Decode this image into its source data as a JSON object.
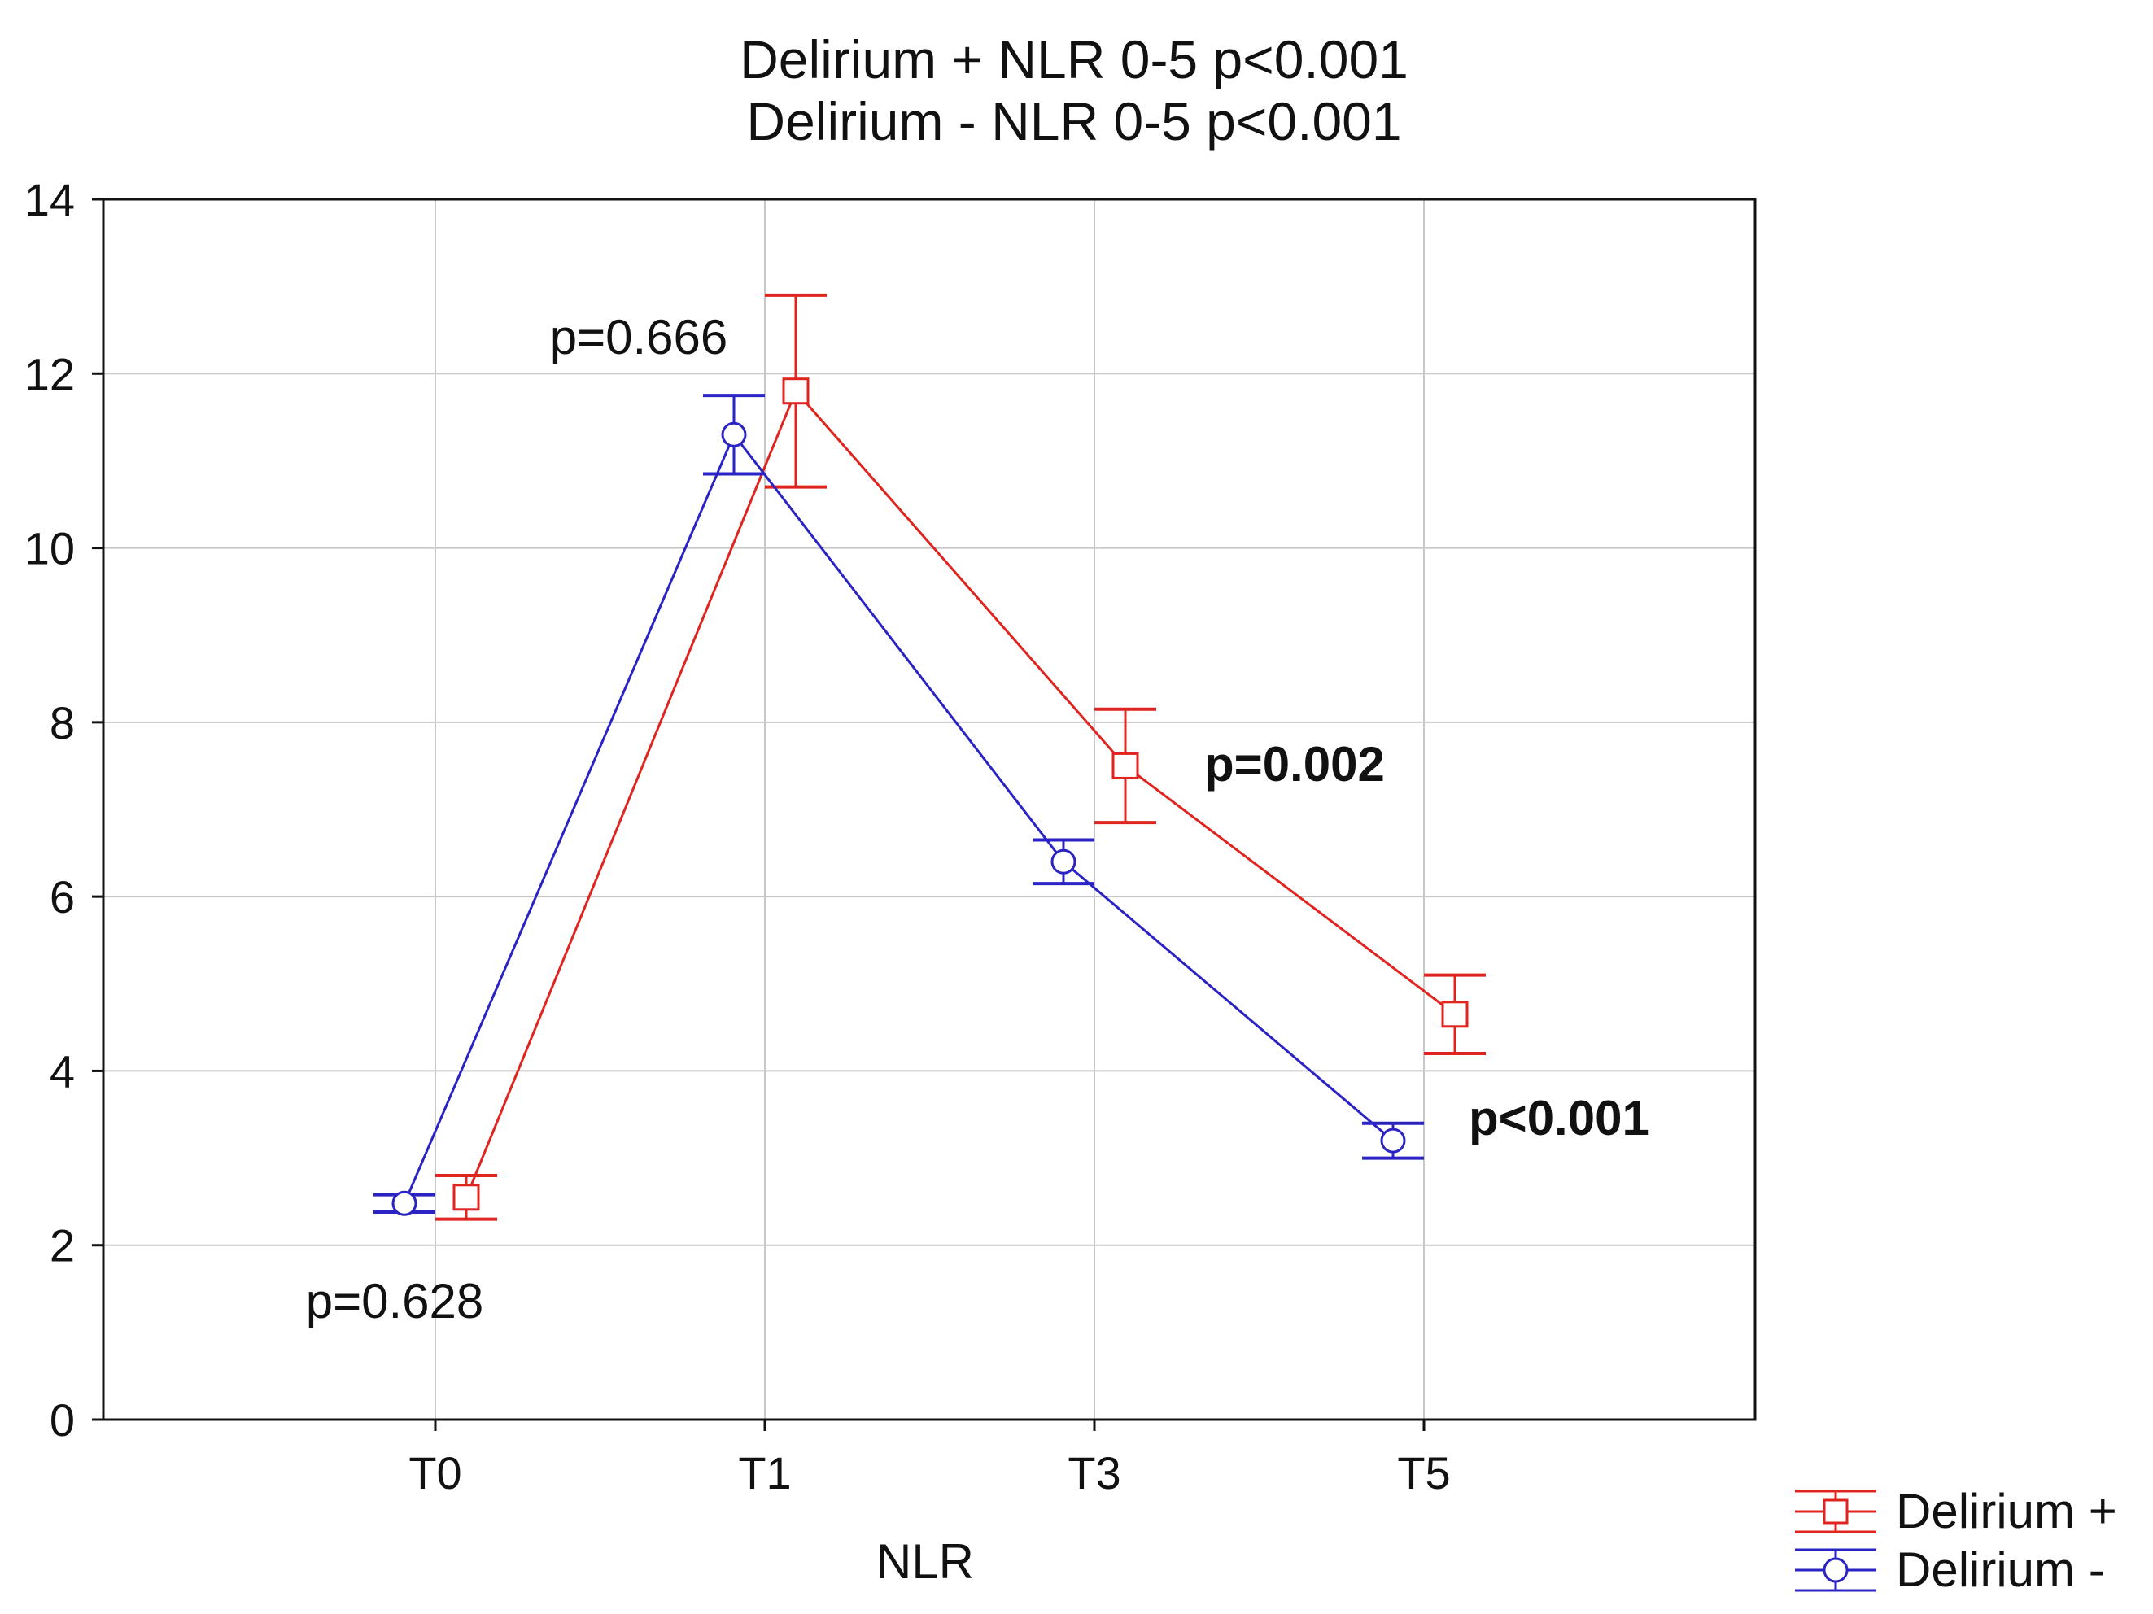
{
  "chart_data": {
    "type": "line",
    "title": [
      "Delirium + NLR 0-5 p<0.001",
      "Delirium - NLR 0-5 p<0.001"
    ],
    "xlabel": "NLR",
    "ylabel": "",
    "categories": [
      "T0",
      "T1",
      "T3",
      "T5"
    ],
    "ylim": [
      0,
      14
    ],
    "yticks": [
      "0",
      "2",
      "4",
      "6",
      "8",
      "10",
      "12",
      "14"
    ],
    "grid": true,
    "series": [
      {
        "name": "Delirium +",
        "color": "#e0241f",
        "marker": "square",
        "values": [
          2.55,
          11.8,
          7.5,
          4.65
        ],
        "err_low": [
          2.3,
          10.7,
          6.85,
          4.2
        ],
        "err_high": [
          2.8,
          12.9,
          8.15,
          5.1
        ]
      },
      {
        "name": "Delirium -",
        "color": "#2b23c4",
        "marker": "circle",
        "values": [
          2.48,
          11.3,
          6.4,
          3.2
        ],
        "err_low": [
          2.38,
          10.85,
          6.15,
          3.0
        ],
        "err_high": [
          2.58,
          11.75,
          6.65,
          3.4
        ]
      }
    ],
    "annotations": [
      {
        "text": "p=0.628",
        "category": "T0",
        "bold": false
      },
      {
        "text": "p=0.666",
        "category": "T1",
        "bold": false
      },
      {
        "text": "p=0.002",
        "category": "T3",
        "bold": true
      },
      {
        "text": "p<0.001",
        "category": "T5",
        "bold": true
      }
    ],
    "legend_position": "bottom-right"
  }
}
